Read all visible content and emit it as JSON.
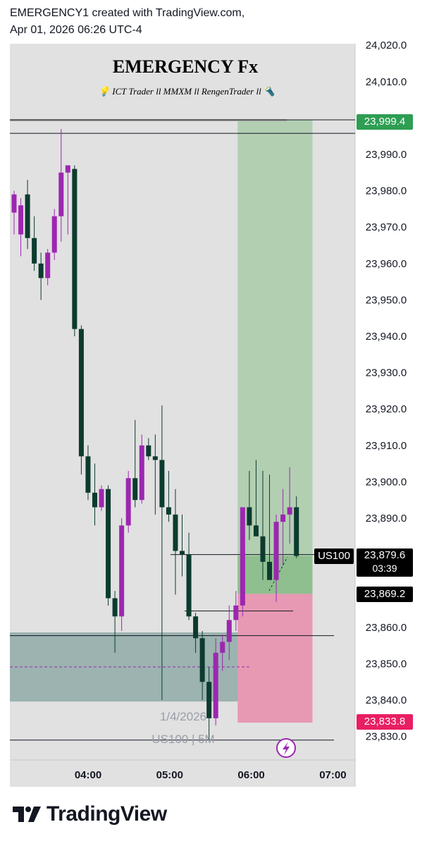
{
  "header": {
    "line1": "EMERGENCY1 created with TradingView.com,",
    "line2": "Apr 01, 2026 06:26 UTC-4"
  },
  "overlay": {
    "title": "EMERGENCY Fx",
    "subtitle": "💡 ICT Trader ll MMXM ll RengenTrader ll 🔦",
    "watermark_date": "1/4/2026",
    "watermark_symbol": "US100 | 5M"
  },
  "footer": {
    "brand": "TradingView",
    "logo_icon": "tradingview-logo-icon"
  },
  "colors": {
    "bull": "#9c27b0",
    "bear": "#0c3b2e",
    "target_zone": "#b2cfb2",
    "stop_zone": "#e799b3",
    "discount_zone": "#9cb3b0",
    "profit_tag": "#2e9e53",
    "stop_tag": "#e91e63",
    "last_tag": "#000000"
  },
  "chart_data": {
    "type": "candlestick",
    "symbol": "US100",
    "timeframe": "5M",
    "x_ticks": [
      "04:00",
      "05:00",
      "06:00",
      "07:00"
    ],
    "x_tick_times": [
      4.0,
      5.0,
      6.0,
      7.0
    ],
    "ylim": [
      23826,
      24022
    ],
    "y_ticks": [
      24020.0,
      24010.0,
      23990.0,
      23980.0,
      23970.0,
      23960.0,
      23950.0,
      23940.0,
      23930.0,
      23920.0,
      23910.0,
      23900.0,
      23890.0,
      23860.0,
      23850.0,
      23840.0,
      23830.0
    ],
    "y_tick_labels": [
      "24,020.0",
      "24,010.0",
      "23,990.0",
      "23,980.0",
      "23,970.0",
      "23,960.0",
      "23,950.0",
      "23,940.0",
      "23,930.0",
      "23,920.0",
      "23,910.0",
      "23,900.0",
      "23,890.0",
      "23,860.0",
      "23,850.0",
      "23,840.0",
      "23,830.0"
    ],
    "price_labels": {
      "target": "23,999.4",
      "last": "23,879.6",
      "countdown": "03:39",
      "entry": "23,869.2",
      "stop": "23,833.8",
      "symbol_tag": "US100"
    },
    "levels": {
      "target": 23999.4,
      "last": 23879.6,
      "entry": 23869.2,
      "stop": 23833.8
    },
    "horizontal_lines": [
      23999.5,
      23995.8,
      23880.0,
      23864.5,
      23857.7,
      23829.0
    ],
    "zones": {
      "target_zone": {
        "t_start": 5.833,
        "t_end": 6.75,
        "y_low": 23869.2,
        "y_high": 23999.4
      },
      "entry_zone": {
        "t_start": 5.833,
        "t_end": 6.75,
        "y_low": 23869.2,
        "y_high": 23879.6
      },
      "stop_zone": {
        "t_start": 5.833,
        "t_end": 6.75,
        "y_low": 23833.8,
        "y_high": 23869.2
      },
      "discount_zone": {
        "t_start": 3.0,
        "t_end": 6.0,
        "y_low": 23839.6,
        "y_high": 23858.6
      },
      "discount_mid": 23849.1
    },
    "candles": [
      {
        "t": 3.0,
        "o": 23974,
        "h": 23980,
        "l": 23968,
        "c": 23979
      },
      {
        "t": 3.083,
        "o": 23968,
        "h": 23978,
        "l": 23962,
        "c": 23976
      },
      {
        "t": 3.167,
        "o": 23979,
        "h": 23983,
        "l": 23964,
        "c": 23967
      },
      {
        "t": 3.25,
        "o": 23967,
        "h": 23973,
        "l": 23958,
        "c": 23960
      },
      {
        "t": 3.333,
        "o": 23960,
        "h": 23963,
        "l": 23950,
        "c": 23956
      },
      {
        "t": 3.417,
        "o": 23956,
        "h": 23964,
        "l": 23954,
        "c": 23963
      },
      {
        "t": 3.5,
        "o": 23963,
        "h": 23975,
        "l": 23961,
        "c": 23973
      },
      {
        "t": 3.583,
        "o": 23973,
        "h": 23997,
        "l": 23966,
        "c": 23985
      },
      {
        "t": 3.667,
        "o": 23985,
        "h": 23987,
        "l": 23968,
        "c": 23987
      },
      {
        "t": 3.75,
        "o": 23986,
        "h": 23987,
        "l": 23940,
        "c": 23942
      },
      {
        "t": 3.833,
        "o": 23942,
        "h": 23943,
        "l": 23902,
        "c": 23907
      },
      {
        "t": 3.917,
        "o": 23907,
        "h": 23910,
        "l": 23895,
        "c": 23897
      },
      {
        "t": 3.917,
        "o": 23897,
        "h": 23905,
        "l": 23888,
        "c": 23893
      },
      {
        "t": 4.0,
        "o": 23893,
        "h": 23899,
        "l": 23892,
        "c": 23898
      },
      {
        "t": 4.083,
        "o": 23898,
        "h": 23899,
        "l": 23866,
        "c": 23868
      },
      {
        "t": 4.167,
        "o": 23868,
        "h": 23870,
        "l": 23853,
        "c": 23863
      },
      {
        "t": 4.25,
        "o": 23863,
        "h": 23890,
        "l": 23859,
        "c": 23888
      },
      {
        "t": 4.333,
        "o": 23888,
        "h": 23903,
        "l": 23886,
        "c": 23901
      },
      {
        "t": 4.417,
        "o": 23901,
        "h": 23917,
        "l": 23893,
        "c": 23895
      },
      {
        "t": 4.5,
        "o": 23895,
        "h": 23913,
        "l": 23894,
        "c": 23910
      },
      {
        "t": 4.583,
        "o": 23910,
        "h": 23912,
        "l": 23906,
        "c": 23907
      },
      {
        "t": 4.667,
        "o": 23907,
        "h": 23913,
        "l": 23891,
        "c": 23906
      },
      {
        "t": 4.75,
        "o": 23906,
        "h": 23921,
        "l": 23840,
        "c": 23893
      },
      {
        "t": 4.833,
        "o": 23893,
        "h": 23903,
        "l": 23889,
        "c": 23891
      },
      {
        "t": 4.917,
        "o": 23891,
        "h": 23898,
        "l": 23869,
        "c": 23881
      },
      {
        "t": 5.0,
        "o": 23881,
        "h": 23891,
        "l": 23874,
        "c": 23880
      },
      {
        "t": 5.083,
        "o": 23880,
        "h": 23886,
        "l": 23862,
        "c": 23863
      },
      {
        "t": 5.167,
        "o": 23863,
        "h": 23864,
        "l": 23853,
        "c": 23857
      },
      {
        "t": 5.25,
        "o": 23857,
        "h": 23859,
        "l": 23840,
        "c": 23845
      },
      {
        "t": 5.333,
        "o": 23845,
        "h": 23849,
        "l": 23829,
        "c": 23835
      },
      {
        "t": 5.417,
        "o": 23835,
        "h": 23857,
        "l": 23833,
        "c": 23853
      },
      {
        "t": 5.5,
        "o": 23853,
        "h": 23858,
        "l": 23848,
        "c": 23856
      },
      {
        "t": 5.583,
        "o": 23856,
        "h": 23866,
        "l": 23851,
        "c": 23862
      },
      {
        "t": 5.667,
        "o": 23862,
        "h": 23870,
        "l": 23859,
        "c": 23866
      },
      {
        "t": 5.75,
        "o": 23866,
        "h": 23893,
        "l": 23863,
        "c": 23893
      },
      {
        "t": 5.833,
        "o": 23893,
        "h": 23903,
        "l": 23884,
        "c": 23888
      },
      {
        "t": 5.917,
        "o": 23888,
        "h": 23906,
        "l": 23885,
        "c": 23885
      },
      {
        "t": 6.0,
        "o": 23885,
        "h": 23903,
        "l": 23873,
        "c": 23878
      },
      {
        "t": 6.083,
        "o": 23878,
        "h": 23902,
        "l": 23874,
        "c": 23873
      },
      {
        "t": 6.167,
        "o": 23873,
        "h": 23891,
        "l": 23867,
        "c": 23889
      },
      {
        "t": 6.25,
        "o": 23889,
        "h": 23898,
        "l": 23877,
        "c": 23891
      },
      {
        "t": 6.333,
        "o": 23891,
        "h": 23904,
        "l": 23883,
        "c": 23893
      },
      {
        "t": 6.417,
        "o": 23893,
        "h": 23896,
        "l": 23879,
        "c": 23879.6
      }
    ]
  }
}
